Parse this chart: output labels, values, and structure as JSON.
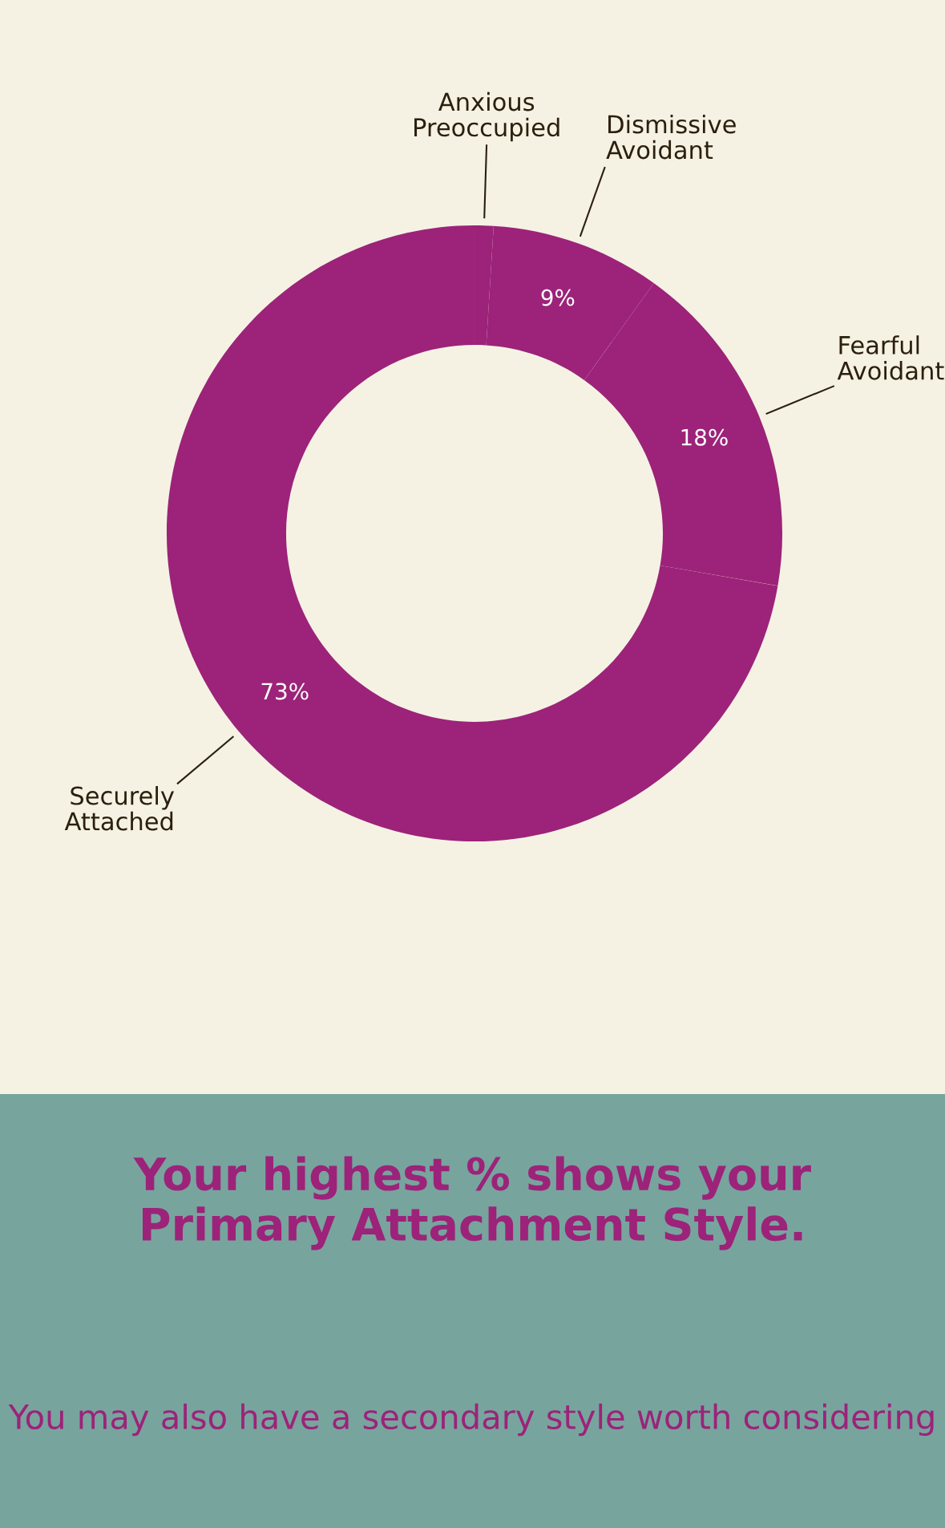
{
  "chart_data": {
    "type": "donut",
    "categories": [
      "Anxious\nPreoccupied",
      "Dismissive\nAvoidant",
      "Fearful\nAvoidant",
      "Securely\nAttached"
    ],
    "values": [
      1,
      9,
      18,
      73
    ],
    "value_labels": [
      null,
      "9%",
      "18%",
      "73%"
    ],
    "colors": [
      "#9c2379",
      "#9c2379",
      "#9c2379",
      "#9c2379"
    ],
    "title": "Your highest % shows your\nPrimary Attachment Style.",
    "subtitle": "You may also have a secondary style worth considering"
  }
}
